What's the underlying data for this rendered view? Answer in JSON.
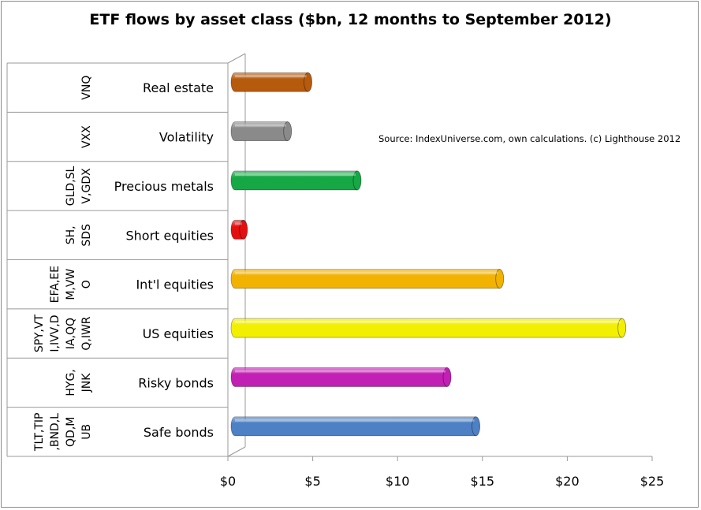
{
  "chart_data": {
    "type": "bar",
    "orientation": "horizontal",
    "title": "ETF flows by asset class ($bn, 12 months to September 2012)",
    "annotation": "Source: IndexUniverse.com, own calculations. (c) Lighthouse 2012",
    "categories": [
      "Real estate",
      "Volatility",
      "Precious metals",
      "Short equities",
      "Int'l equities",
      "US equities",
      "Risky bonds",
      "Safe bonds"
    ],
    "tickers": [
      [
        "VNQ"
      ],
      [
        "VXX"
      ],
      [
        "GLD,SL",
        "V,GDX"
      ],
      [
        "SH,",
        "SDS"
      ],
      [
        "EFA,EE",
        "M,VW",
        "O"
      ],
      [
        "SPY,VT",
        "I,IVV,D",
        "IA,QQ",
        "Q,IWR"
      ],
      [
        "HYG,",
        "JNK"
      ],
      [
        "TLT,TIP",
        ",BND,L",
        "QD,M",
        "UB"
      ]
    ],
    "values": [
      4.3,
      3.1,
      7.2,
      0.5,
      15.6,
      22.8,
      12.5,
      14.2
    ],
    "colors": [
      "#b65a0e",
      "#8a8a8a",
      "#15a845",
      "#e31010",
      "#f2b200",
      "#f2f000",
      "#c21fb4",
      "#4d80c4"
    ],
    "xlim": [
      0,
      25
    ],
    "xticks": [
      0,
      5,
      10,
      15,
      20,
      25
    ],
    "tick_labels": [
      "$0",
      "$5",
      "$10",
      "$15",
      "$20",
      "$25"
    ],
    "grid": false,
    "legend": "none"
  }
}
